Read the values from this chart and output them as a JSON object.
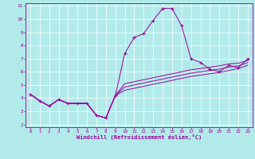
{
  "xlabel": "Windchill (Refroidissement éolien,°C)",
  "background_color": "#b2eaea",
  "grid_color": "#ffffff",
  "line_color": "#990099",
  "xlim": [
    -0.5,
    23.5
  ],
  "ylim": [
    1.8,
    11.2
  ],
  "xticks": [
    0,
    1,
    2,
    3,
    4,
    5,
    6,
    7,
    8,
    9,
    10,
    11,
    12,
    13,
    14,
    15,
    16,
    17,
    18,
    19,
    20,
    21,
    22,
    23
  ],
  "yticks": [
    2,
    3,
    4,
    5,
    6,
    7,
    8,
    9,
    10,
    11
  ],
  "hours": [
    0,
    1,
    2,
    3,
    4,
    5,
    6,
    7,
    8,
    9,
    10,
    11,
    12,
    13,
    14,
    15,
    16,
    17,
    18,
    19,
    20,
    21,
    22,
    23
  ],
  "temp_main": [
    4.3,
    3.8,
    3.4,
    3.9,
    3.6,
    3.6,
    3.6,
    2.7,
    2.5,
    4.2,
    7.4,
    8.6,
    8.9,
    9.9,
    10.8,
    10.8,
    9.5,
    7.0,
    6.7,
    6.2,
    6.0,
    6.5,
    6.3,
    7.0
  ],
  "temp_low": [
    4.3,
    3.8,
    3.4,
    3.9,
    3.6,
    3.6,
    3.6,
    2.7,
    2.5,
    4.2,
    4.6,
    4.75,
    4.9,
    5.05,
    5.2,
    5.35,
    5.5,
    5.65,
    5.75,
    5.85,
    5.95,
    6.1,
    6.25,
    6.5
  ],
  "temp_mid1": [
    4.3,
    3.8,
    3.4,
    3.9,
    3.6,
    3.6,
    3.6,
    2.7,
    2.5,
    4.2,
    4.85,
    5.0,
    5.15,
    5.3,
    5.45,
    5.6,
    5.75,
    5.9,
    6.0,
    6.1,
    6.2,
    6.35,
    6.45,
    6.7
  ],
  "temp_mid2": [
    4.3,
    3.8,
    3.4,
    3.9,
    3.6,
    3.6,
    3.6,
    2.7,
    2.5,
    4.2,
    5.1,
    5.25,
    5.4,
    5.55,
    5.7,
    5.85,
    6.0,
    6.15,
    6.25,
    6.35,
    6.45,
    6.6,
    6.65,
    6.85
  ]
}
